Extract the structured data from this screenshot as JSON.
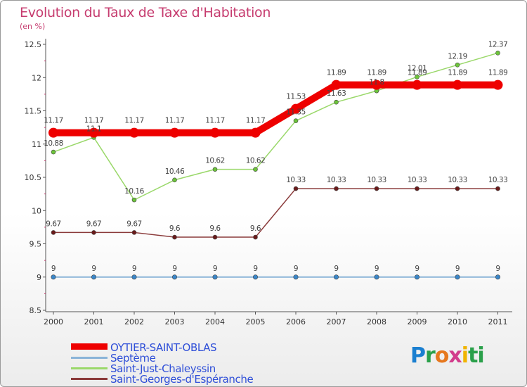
{
  "header": {
    "title": "Evolution du Taux de Taxe d'Habitation",
    "subtitle": "(en %)"
  },
  "logo": {
    "text": "Proxiti",
    "letters": [
      "P",
      "r",
      "o",
      "x",
      "i",
      "ti"
    ]
  },
  "chart_data": {
    "type": "line",
    "title": "Evolution du Taux de Taxe d'Habitation",
    "subtitle": "(en %)",
    "x": [
      "2000",
      "2001",
      "2002",
      "2003",
      "2004",
      "2005",
      "2006",
      "2007",
      "2008",
      "2009",
      "2010",
      "2011"
    ],
    "ylim": [
      8.5,
      12.5
    ],
    "yticks": [
      "8.5",
      "9",
      "9.5",
      "10",
      "10.5",
      "11",
      "11.5",
      "12",
      "12.5"
    ],
    "grid": false,
    "legend_position": "bottom-left",
    "series": [
      {
        "name": "OYTIER-SAINT-OBLAS",
        "color": "#ee0000",
        "marker": "#ee0000",
        "values": [
          11.17,
          11.17,
          11.17,
          11.17,
          11.17,
          11.17,
          11.53,
          11.89,
          11.89,
          11.89,
          11.89,
          11.89
        ],
        "labels": [
          "11.17",
          "11.17",
          "11.17",
          "11.17",
          "11.17",
          "11.17",
          "11.53",
          "11.89",
          "11.89",
          "11.89",
          "11.89",
          "11.89"
        ]
      },
      {
        "name": "Septème",
        "color": "#8ab4d8",
        "marker": "#3a86c8",
        "values": [
          9,
          9,
          9,
          9,
          9,
          9,
          9,
          9,
          9,
          9,
          9,
          9
        ],
        "labels": [
          "9",
          "9",
          "9",
          "9",
          "9",
          "9",
          "9",
          "9",
          "9",
          "9",
          "9",
          "9"
        ]
      },
      {
        "name": "Saint-Just-Chaleyssin",
        "color": "#9ad86a",
        "marker": "#6cc43a",
        "values": [
          10.88,
          11.1,
          10.16,
          10.46,
          10.62,
          10.62,
          11.35,
          11.63,
          11.8,
          12.01,
          12.19,
          12.37
        ],
        "labels": [
          "10.88",
          "11.1",
          "10.16",
          "10.46",
          "10.62",
          "10.62",
          "11.35",
          "11.63",
          "11.8",
          "12.01",
          "12.19",
          "12.37"
        ]
      },
      {
        "name": "Saint-Georges-d'Espéranche",
        "color": "#8a3a3a",
        "marker": "#6a1a1a",
        "values": [
          9.67,
          9.67,
          9.67,
          9.6,
          9.6,
          9.6,
          10.33,
          10.33,
          10.33,
          10.33,
          10.33,
          10.33
        ],
        "labels": [
          "9.67",
          "9.67",
          "9.67",
          "9.6",
          "9.6",
          "9.6",
          "10.33",
          "10.33",
          "10.33",
          "10.33",
          "10.33",
          "10.33"
        ]
      }
    ]
  }
}
